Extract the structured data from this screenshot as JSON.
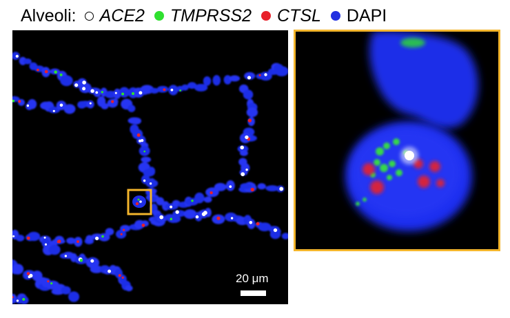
{
  "legend": {
    "title": "Alveoli:",
    "items": [
      {
        "label": "ACE2",
        "color": "#ffffff",
        "italic": true,
        "icon": "open-circle-marker"
      },
      {
        "label": "TMPRSS2",
        "color": "#2fe02f",
        "italic": true,
        "icon": "green-dot-marker"
      },
      {
        "label": "CTSL",
        "color": "#e8202a",
        "italic": true,
        "icon": "red-dot-marker"
      },
      {
        "label": "DAPI",
        "color": "#2230e0",
        "italic": false,
        "icon": "blue-dot-marker"
      }
    ]
  },
  "scale_bar": {
    "label": "20 μm"
  },
  "colors": {
    "inset_border": "#f3b52c",
    "background": "#000000",
    "nuclei": "#1f2ee6"
  }
}
